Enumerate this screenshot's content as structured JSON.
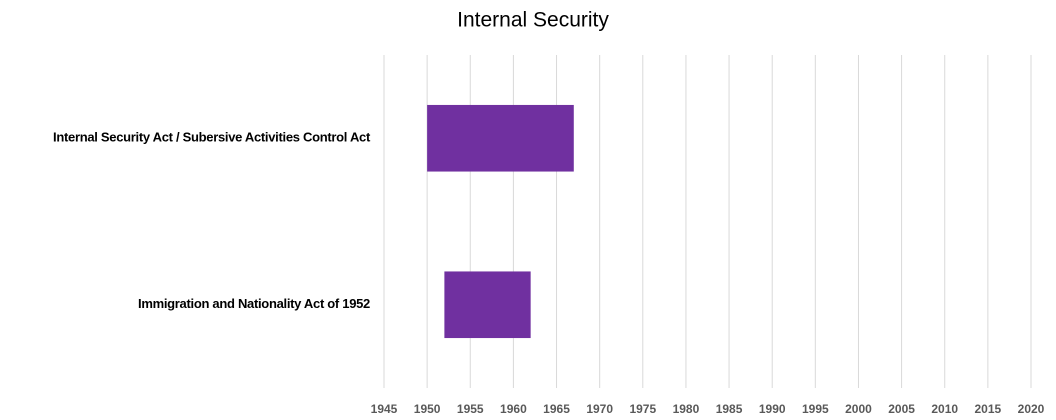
{
  "chart_data": {
    "type": "gantt",
    "title": "Internal Security",
    "categories": [
      "Internal Security Act / Subersive Activities Control Act",
      "Immigration and Nationality Act of 1952"
    ],
    "start": [
      1950,
      1952
    ],
    "end": [
      1967,
      1962
    ],
    "color": "#7030a0",
    "xlim": [
      1945,
      2020
    ],
    "xticks": [
      1945,
      1950,
      1955,
      1960,
      1965,
      1970,
      1975,
      1980,
      1985,
      1990,
      1995,
      2000,
      2005,
      2010,
      2015,
      2020
    ],
    "grid": true
  }
}
